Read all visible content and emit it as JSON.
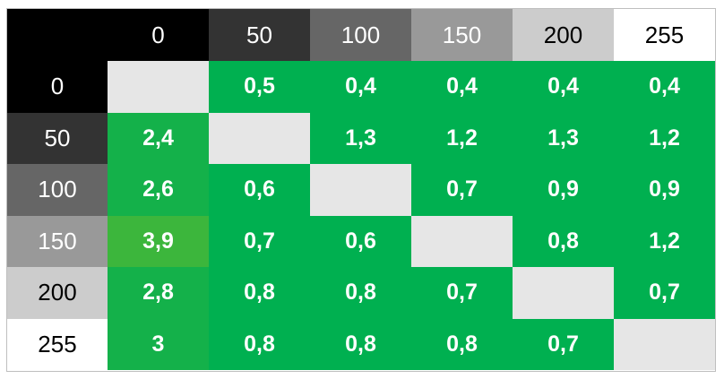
{
  "table": {
    "columns": [
      "0",
      "50",
      "100",
      "150",
      "200",
      "255"
    ],
    "rows": [
      {
        "label": "0",
        "cells": [
          null,
          "0,5",
          "0,4",
          "0,4",
          "0,4",
          "0,4"
        ]
      },
      {
        "label": "50",
        "cells": [
          "2,4",
          null,
          "1,3",
          "1,2",
          "1,3",
          "1,2"
        ]
      },
      {
        "label": "100",
        "cells": [
          "2,6",
          "0,6",
          null,
          "0,7",
          "0,9",
          "0,9"
        ]
      },
      {
        "label": "150",
        "cells": [
          "3,9",
          "0,7",
          "0,6",
          null,
          "0,8",
          "1,2"
        ]
      },
      {
        "label": "200",
        "cells": [
          "2,8",
          "0,8",
          "0,8",
          "0,7",
          null,
          "0,7"
        ]
      },
      {
        "label": "255",
        "cells": [
          "3",
          "0,8",
          "0,8",
          "0,8",
          "0,7",
          null
        ]
      }
    ]
  }
}
